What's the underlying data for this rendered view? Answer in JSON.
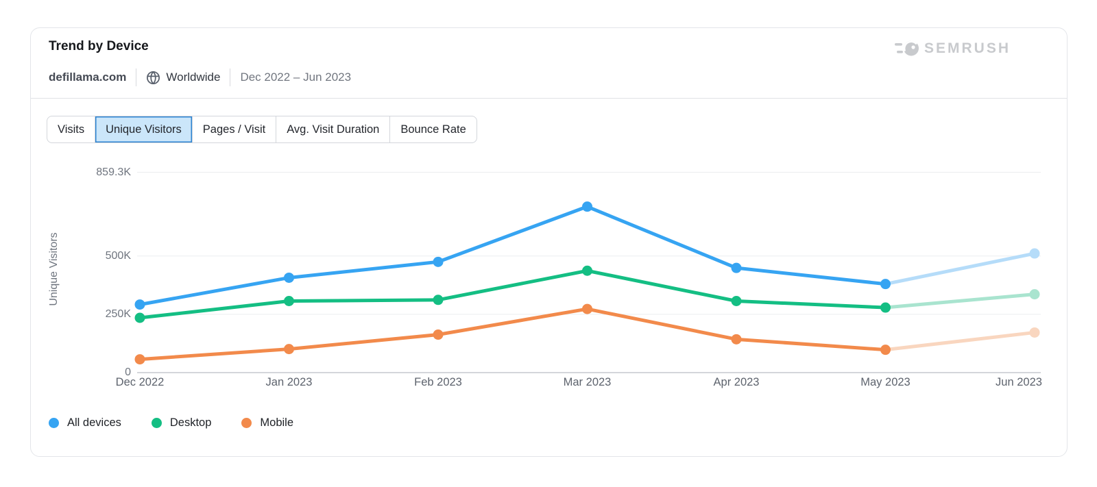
{
  "header": {
    "title": "Trend by Device",
    "domain": "defillama.com",
    "location": "Worldwide",
    "date_range": "Dec 2022 – Jun 2023",
    "brand": "SEMRUSH"
  },
  "tabs": [
    {
      "label": "Visits",
      "selected": false
    },
    {
      "label": "Unique Visitors",
      "selected": true
    },
    {
      "label": "Pages / Visit",
      "selected": false
    },
    {
      "label": "Avg. Visit Duration",
      "selected": false
    },
    {
      "label": "Bounce Rate",
      "selected": false
    }
  ],
  "chart_data": {
    "type": "line",
    "title": "Trend by Device — Unique Visitors",
    "xlabel": "",
    "ylabel": "Unique Visitors",
    "unit": "K",
    "x": [
      "Dec 2022",
      "Jan 2023",
      "Feb 2023",
      "Mar 2023",
      "Apr 2023",
      "May 2023",
      "Jun 2023"
    ],
    "y_ticks": [
      {
        "label": "859.3K",
        "value_k": 859.3
      },
      {
        "label": "500K",
        "value_k": 500
      },
      {
        "label": "250K",
        "value_k": 250
      },
      {
        "label": "0",
        "value_k": 0
      }
    ],
    "ylim_k": [
      0,
      859.3
    ],
    "grid": "horizontal",
    "legend_position": "bottom-left",
    "projected_last_segment": true,
    "series": [
      {
        "name": "All devices",
        "color": "#36a4f2",
        "light_color": "#b5dcf9",
        "values_k": [
          292,
          407,
          475,
          712,
          449,
          380,
          511
        ]
      },
      {
        "name": "Desktop",
        "color": "#14be83",
        "light_color": "#a9e4cf",
        "values_k": [
          235,
          307,
          312,
          437,
          307,
          279,
          336
        ]
      },
      {
        "name": "Mobile",
        "color": "#f28a4b",
        "light_color": "#f9d6bf",
        "values_k": [
          57,
          101,
          163,
          273,
          143,
          98,
          172
        ]
      }
    ],
    "colors": {
      "selected_tab_bg": "#cbe6fa",
      "selected_tab_border": "#2d84d2",
      "gridline": "#ebedef",
      "axis": "#c6c9ce",
      "brand_gray": "#c8cacd"
    }
  }
}
